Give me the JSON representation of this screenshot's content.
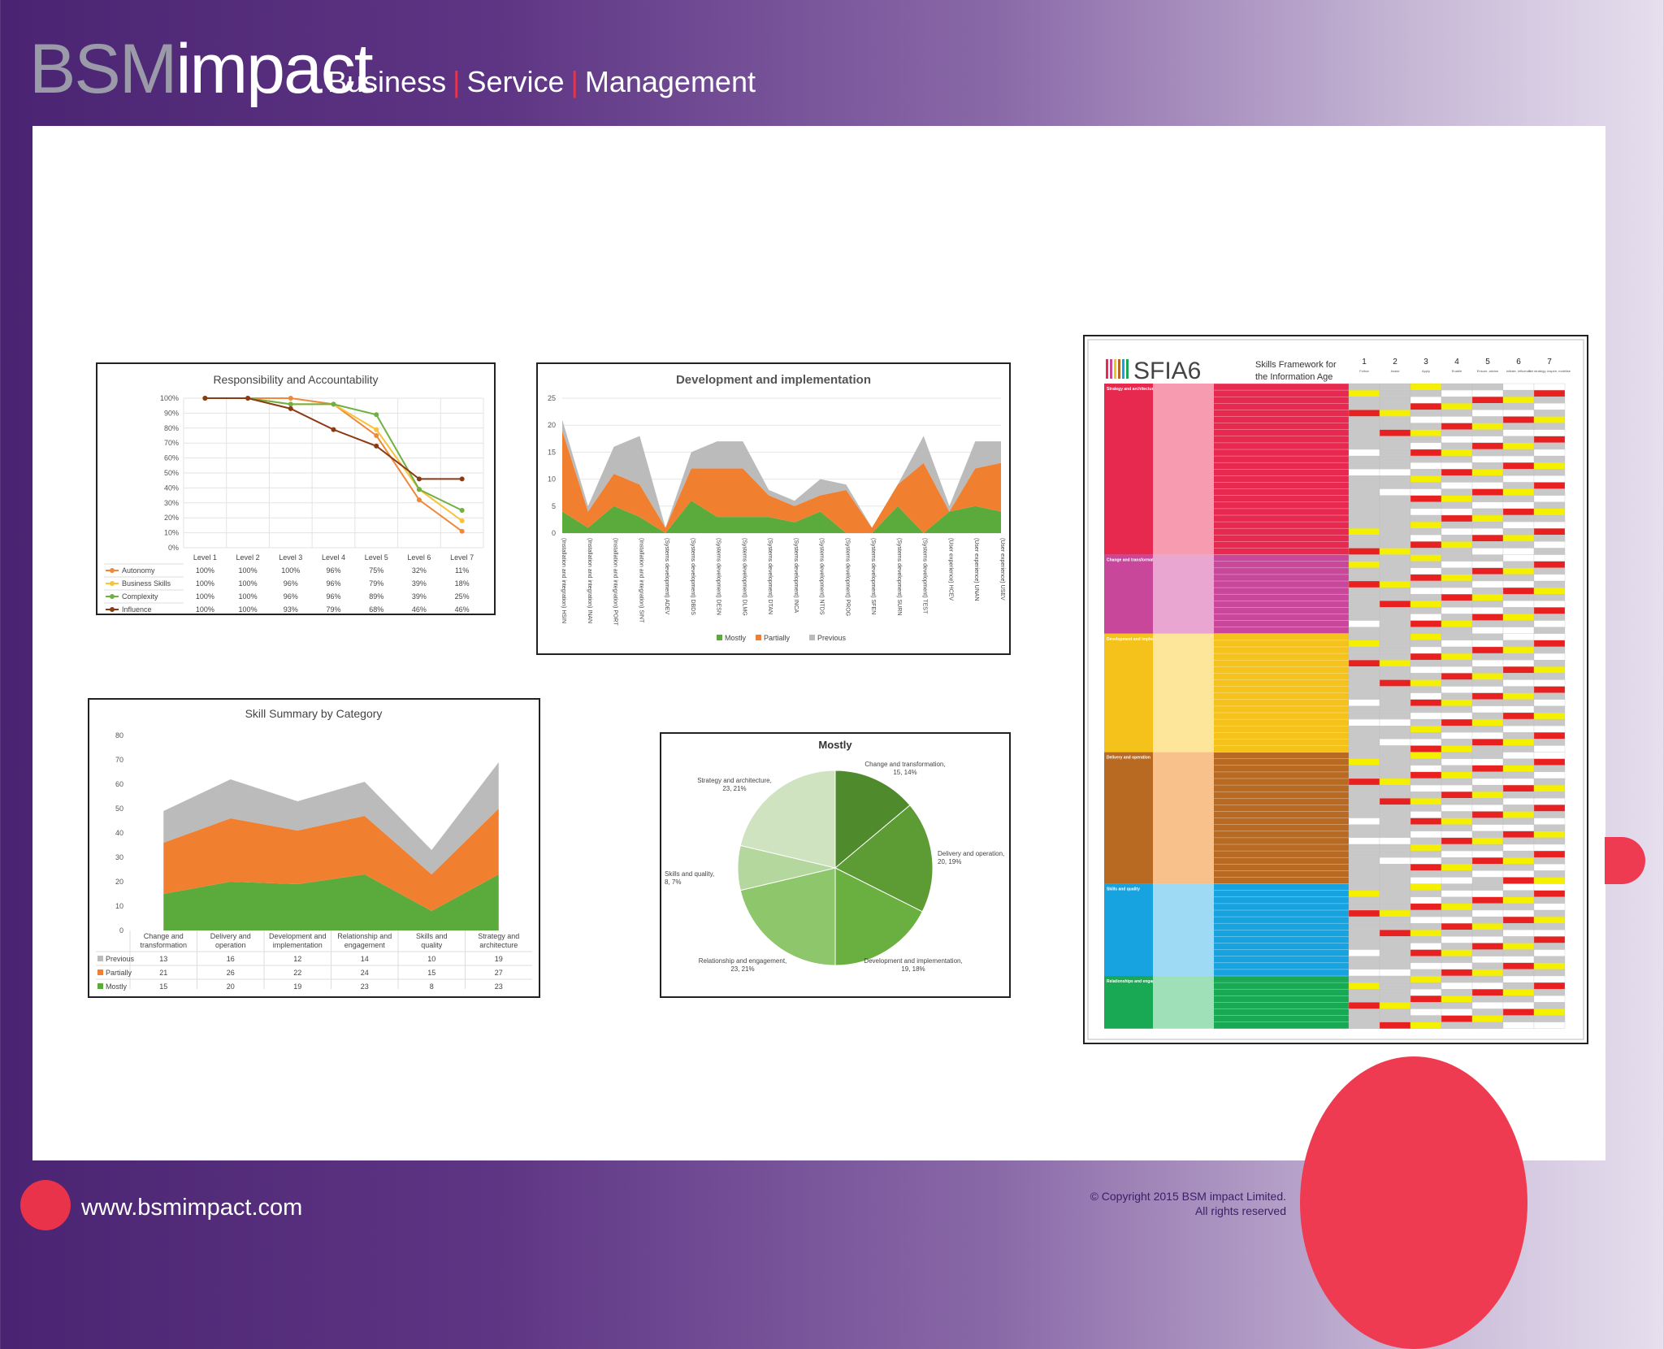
{
  "header": {
    "logo_bsm": "BSM",
    "logo_impact": "impact",
    "tagline": [
      "Business",
      "Service",
      "Management"
    ],
    "accent": "#e8334a"
  },
  "footer": {
    "url": "www.bsmimpact.com",
    "copyright_1": "© Copyright 2015 BSM impact Limited.",
    "copyright_2": "All rights reserved"
  },
  "chart_data": [
    {
      "type": "line",
      "title": "Responsibility and Accountability",
      "categories": [
        "Level 1",
        "Level 2",
        "Level 3",
        "Level 4",
        "Level 5",
        "Level 6",
        "Level 7"
      ],
      "ylim": [
        0,
        100
      ],
      "yticks": [
        "0%",
        "10%",
        "20%",
        "30%",
        "40%",
        "50%",
        "60%",
        "70%",
        "80%",
        "90%",
        "100%"
      ],
      "legend": "bottom-table",
      "series": [
        {
          "name": "Autonomy",
          "color": "#f0883a",
          "values": [
            100,
            100,
            100,
            96,
            75,
            32,
            11
          ],
          "labels": [
            "100%",
            "100%",
            "100%",
            "96%",
            "75%",
            "32%",
            "11%"
          ]
        },
        {
          "name": "Business Skills",
          "color": "#f5c43b",
          "values": [
            100,
            100,
            96,
            96,
            79,
            39,
            18
          ],
          "labels": [
            "100%",
            "100%",
            "96%",
            "96%",
            "79%",
            "39%",
            "18%"
          ]
        },
        {
          "name": "Complexity",
          "color": "#6fb043",
          "values": [
            100,
            100,
            96,
            96,
            89,
            39,
            25
          ],
          "labels": [
            "100%",
            "100%",
            "96%",
            "96%",
            "89%",
            "39%",
            "25%"
          ]
        },
        {
          "name": "Influence",
          "color": "#8b3a12",
          "values": [
            100,
            100,
            93,
            79,
            68,
            46,
            46
          ],
          "labels": [
            "100%",
            "100%",
            "93%",
            "79%",
            "68%",
            "46%",
            "46%"
          ]
        }
      ]
    },
    {
      "type": "area",
      "title": "Development and implementation",
      "ylim": [
        0,
        25
      ],
      "yticks": [
        "0",
        "5",
        "10",
        "15",
        "20",
        "25"
      ],
      "categories": [
        "HSIN",
        "INAN",
        "PORT",
        "SINT",
        "ADEV",
        "DBDS",
        "DESN",
        "DLMG",
        "DTAN",
        "INCA",
        "NTDS",
        "PROG",
        "SFEN",
        "SURN",
        "TEST",
        "HCEV",
        "UNAN",
        "USEV"
      ],
      "xlabels": [
        "(Installation and integration) HSIN",
        "(Installation and integration) INAN",
        "(Installation and integration) PORT",
        "(Installation and integration) SINT",
        "(Systems development) ADEV",
        "(Systems development) DBDS",
        "(Systems development) DESN",
        "(Systems development) DLMG",
        "(Systems development) DTAN",
        "(Systems development) INCA",
        "(Systems development) NTDS",
        "(Systems development) PROG",
        "(Systems development) SFEN",
        "(Systems development) SURN",
        "(Systems development) TEST",
        "(User experience) HCEV",
        "(User experience) UNAN",
        "(User experience) USEV"
      ],
      "legend": "bottom",
      "series": [
        {
          "name": "Mostly",
          "color": "#5aaa3c",
          "values": [
            4,
            1,
            5,
            3,
            0,
            6,
            3,
            3,
            3,
            2,
            4,
            0,
            0,
            5,
            0,
            4,
            5,
            4
          ]
        },
        {
          "name": "Partially",
          "color": "#f08030",
          "values": [
            15,
            3,
            6,
            6,
            1,
            6,
            9,
            9,
            4,
            3,
            3,
            8,
            1,
            4,
            13,
            0,
            7,
            9
          ]
        },
        {
          "name": "Previous",
          "color": "#bbbbbb",
          "values": [
            2,
            1,
            5,
            9,
            0,
            3,
            5,
            5,
            1,
            1,
            3,
            1,
            0,
            0,
            5,
            1,
            5,
            4
          ]
        }
      ]
    },
    {
      "type": "area",
      "title": "Skill Summary by Category",
      "ylim": [
        0,
        80
      ],
      "yticks": [
        "0",
        "10",
        "20",
        "30",
        "40",
        "50",
        "60",
        "70",
        "80"
      ],
      "categories": [
        "Change and transformation",
        "Delivery and operation",
        "Development and implementation",
        "Relationship and engagement",
        "Skills and quality",
        "Strategy and architecture"
      ],
      "legend": "bottom-table",
      "series": [
        {
          "name": "Mostly",
          "color": "#5aaa3c",
          "values": [
            15,
            20,
            19,
            23,
            8,
            23
          ]
        },
        {
          "name": "Partially",
          "color": "#f08030",
          "values": [
            21,
            26,
            22,
            24,
            15,
            27
          ]
        },
        {
          "name": "Previous",
          "color": "#bbbbbb",
          "values": [
            13,
            16,
            12,
            14,
            10,
            19
          ]
        }
      ]
    },
    {
      "type": "pie",
      "title": "Mostly",
      "slices": [
        {
          "name": "Change and transformation, 15, 14%",
          "value": 15,
          "color": "#4f8a2c"
        },
        {
          "name": "Delivery and operation, 20, 19%",
          "value": 20,
          "color": "#5d9b35"
        },
        {
          "name": "Development and implementation, 19, 18%",
          "value": 19,
          "color": "#6ab040"
        },
        {
          "name": "Relationship and engagement, 23, 21%",
          "value": 23,
          "color": "#8ec66b"
        },
        {
          "name": "Skills and quality, 8, 7%",
          "value": 8,
          "color": "#b3d79c"
        },
        {
          "name": "Strategy and architecture, 23, 21%",
          "value": 23,
          "color": "#cfe3c0"
        }
      ]
    }
  ],
  "sfia": {
    "logo": "SFIA6",
    "subtitle_1": "Skills Framework for",
    "subtitle_2": "the Information Age",
    "levels": [
      "1",
      "2",
      "3",
      "4",
      "5",
      "6",
      "7"
    ],
    "level_names": [
      "Follow",
      "Assist",
      "Apply",
      "Enable",
      "Ensure, advise",
      "Initiate, influence",
      "Set strategy, inspire, mobilise"
    ],
    "categories": [
      {
        "name": "Strategy and architecture",
        "color": "#e8294f",
        "light": "#f79bb0",
        "rows": 26
      },
      {
        "name": "Change and transformation",
        "color": "#c9479b",
        "light": "#e8a6d0",
        "rows": 12
      },
      {
        "name": "Development and implementation",
        "color": "#f5c21b",
        "light": "#fde69a",
        "rows": 18
      },
      {
        "name": "Delivery and operation",
        "color": "#b86a22",
        "light": "#f8c08a",
        "rows": 20
      },
      {
        "name": "Skills and quality",
        "color": "#17a3e0",
        "light": "#9fdaf5",
        "rows": 14
      },
      {
        "name": "Relationships and engagement",
        "color": "#19a954",
        "light": "#9fe0b8",
        "rows": 8
      }
    ]
  }
}
